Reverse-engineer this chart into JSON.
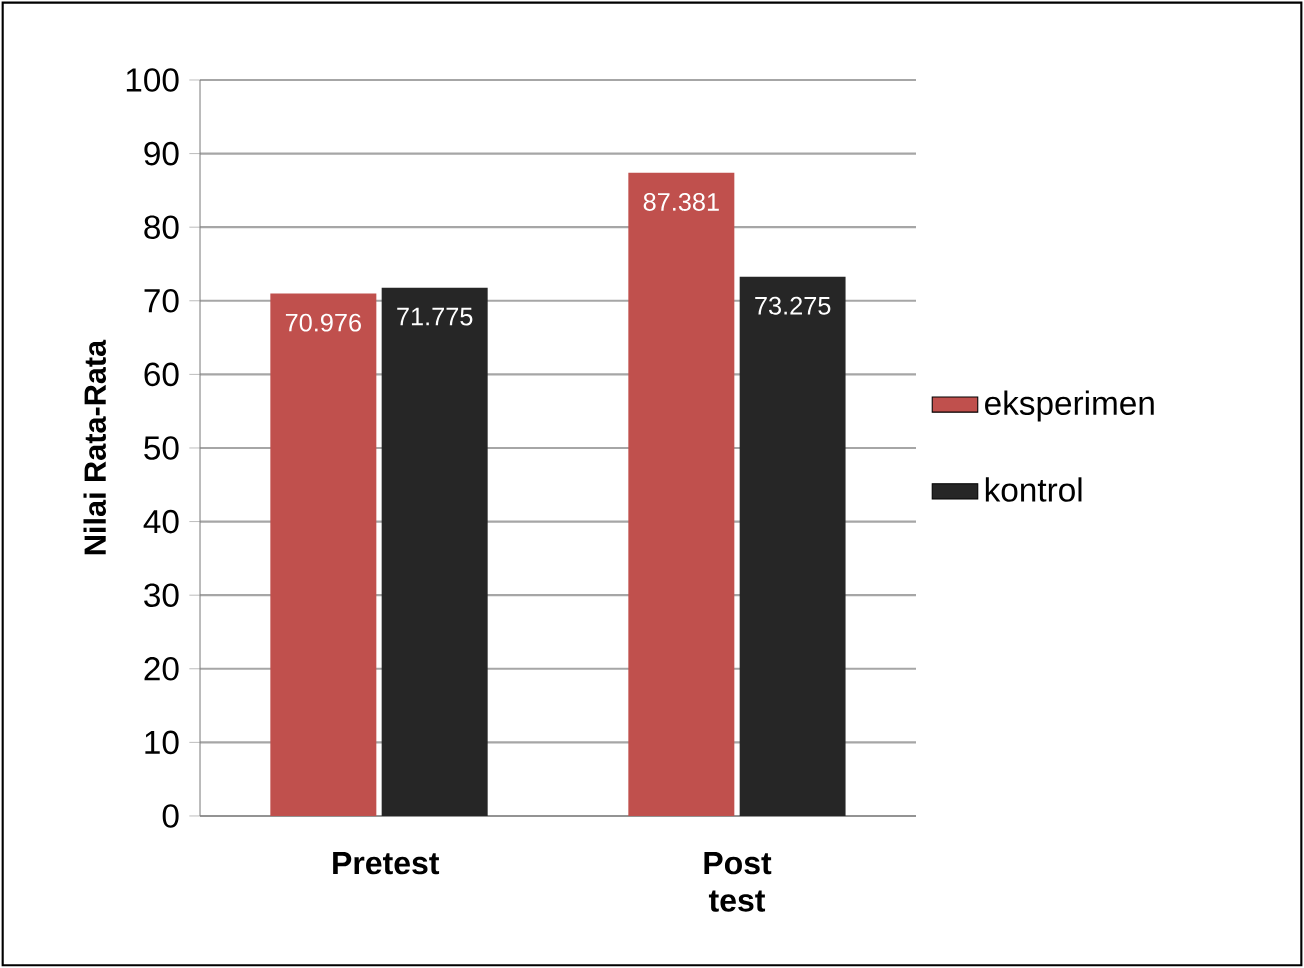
{
  "chart_data": {
    "type": "bar",
    "ylabel": "Nilai Rata-Rata",
    "categories": [
      "Pretest",
      "Post test"
    ],
    "series": [
      {
        "name": "eksperimen",
        "color": "#c0504d",
        "values": [
          70.976,
          87.381
        ]
      },
      {
        "name": "kontrol",
        "color": "#262626",
        "values": [
          71.775,
          73.275
        ]
      }
    ],
    "ylim": [
      0,
      100
    ],
    "yticks": [
      0,
      10,
      20,
      30,
      40,
      50,
      60,
      70,
      80,
      90,
      100
    ],
    "grid": "y",
    "legend": "right",
    "data_labels": true
  }
}
